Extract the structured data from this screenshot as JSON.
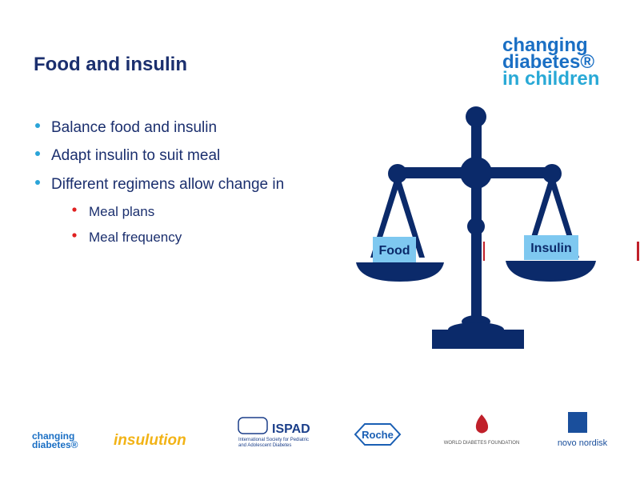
{
  "slide": {
    "title": "Food and insulin",
    "bullets": [
      "Balance food and insulin",
      "Adapt insulin to suit meal",
      "Different regimens allow change in"
    ],
    "sub_bullets": [
      "Meal plans",
      "Meal frequency"
    ],
    "scale_labels": {
      "left": "Food",
      "right": "Insulin"
    },
    "top_logo": [
      "changing",
      "diabetes®",
      "in children"
    ],
    "footer_logos": {
      "changing_diabetes": [
        "changing",
        "diabetes®"
      ],
      "insulution": "insulution",
      "ispad": {
        "name": "ISPAD",
        "full": [
          "International Society for Pediatric",
          "and Adolescent Diabetes"
        ]
      },
      "roche": "Roche",
      "wdf": "WORLD DIABETES FOUNDATION",
      "novo": "novo nordisk"
    }
  }
}
